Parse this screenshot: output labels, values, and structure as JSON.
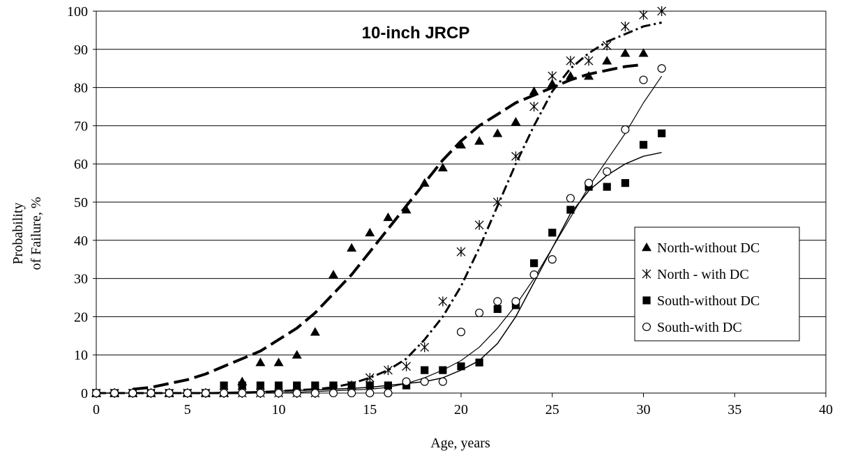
{
  "chart_data": {
    "type": "scatter",
    "title": "10-inch JRCP",
    "xlabel": "Age, years",
    "ylabel_lines": [
      "Probability",
      "of Failure, %"
    ],
    "xlim": [
      0,
      40
    ],
    "ylim": [
      0,
      100
    ],
    "xticks": [
      0,
      5,
      10,
      15,
      20,
      25,
      30,
      35,
      40
    ],
    "yticks": [
      0,
      10,
      20,
      30,
      40,
      50,
      60,
      70,
      80,
      90,
      100
    ],
    "grid": "horizontal",
    "legend_position": "right",
    "series": [
      {
        "name": "North-without DC",
        "marker": "triangle",
        "x": [
          0,
          1,
          2,
          3,
          4,
          5,
          6,
          7,
          8,
          9,
          10,
          11,
          12,
          13,
          14,
          15,
          16,
          17,
          18,
          19,
          20,
          21,
          22,
          23,
          24,
          25,
          26,
          27,
          28,
          29,
          30
        ],
        "y": [
          0,
          0,
          0,
          0,
          0,
          0,
          0,
          0,
          3,
          8,
          8,
          10,
          16,
          31,
          38,
          42,
          46,
          48,
          55,
          59,
          65,
          66,
          68,
          71,
          79,
          81,
          83,
          83,
          87,
          89,
          89
        ],
        "fit": {
          "x": [
            2,
            3,
            4,
            5,
            6,
            7,
            8,
            9,
            10,
            11,
            12,
            13,
            14,
            15,
            16,
            17,
            18,
            19,
            20,
            21,
            22,
            23,
            24,
            25,
            26,
            27,
            28,
            29,
            30
          ],
          "y": [
            1,
            1.5,
            2.5,
            3.5,
            5,
            7,
            9,
            11,
            14,
            17,
            21,
            26,
            31,
            37,
            43,
            49,
            55,
            61,
            66,
            70,
            73,
            76,
            78,
            80,
            82,
            83.5,
            84.5,
            85.5,
            86
          ]
        }
      },
      {
        "name": "North - with DC",
        "marker": "asterisk",
        "x": [
          0,
          1,
          2,
          3,
          4,
          5,
          6,
          7,
          8,
          9,
          10,
          11,
          12,
          13,
          14,
          15,
          16,
          17,
          18,
          19,
          20,
          21,
          22,
          23,
          24,
          25,
          26,
          27,
          28,
          29,
          30,
          31
        ],
        "y": [
          0,
          0,
          0,
          0,
          0,
          0,
          0,
          0,
          0,
          0,
          0,
          0,
          0,
          1,
          2,
          4,
          6,
          7,
          12,
          24,
          37,
          44,
          50,
          62,
          75,
          83,
          87,
          87,
          91,
          96,
          99,
          100
        ],
        "fit": {
          "x": [
            0,
            2,
            4,
            6,
            8,
            10,
            12,
            13,
            14,
            15,
            16,
            17,
            18,
            19,
            20,
            21,
            22,
            23,
            24,
            25,
            26,
            27,
            28,
            29,
            30,
            31
          ],
          "y": [
            0,
            0,
            0,
            0,
            0,
            0.5,
            1,
            1.5,
            2.5,
            4,
            6,
            9,
            14,
            20,
            28,
            38,
            49,
            60,
            70,
            79,
            85,
            89,
            92,
            94,
            96,
            97
          ]
        }
      },
      {
        "name": "South-without DC",
        "marker": "square",
        "x": [
          0,
          1,
          2,
          3,
          4,
          5,
          6,
          7,
          8,
          9,
          10,
          11,
          12,
          13,
          14,
          15,
          16,
          17,
          18,
          19,
          20,
          21,
          22,
          23,
          24,
          25,
          26,
          27,
          28,
          29,
          30,
          31
        ],
        "y": [
          0,
          0,
          0,
          0,
          0,
          0,
          0,
          2,
          2,
          2,
          2,
          2,
          2,
          2,
          2,
          2,
          2,
          2,
          6,
          6,
          7,
          8,
          22,
          23,
          34,
          42,
          48,
          54,
          54,
          55,
          65,
          68
        ],
        "fit": {
          "x": [
            0,
            5,
            10,
            13,
            15,
            16,
            17,
            18,
            19,
            20,
            21,
            22,
            23,
            24,
            25,
            26,
            27,
            28,
            29,
            30,
            31
          ],
          "y": [
            0,
            0,
            0.5,
            1,
            1.5,
            2,
            2.5,
            3,
            4,
            6,
            8.5,
            13,
            20,
            29,
            38,
            47,
            53,
            57,
            60,
            62,
            63
          ]
        }
      },
      {
        "name": "South-with DC",
        "marker": "circle",
        "x": [
          0,
          1,
          2,
          3,
          4,
          5,
          6,
          7,
          8,
          9,
          10,
          11,
          12,
          13,
          14,
          15,
          16,
          17,
          18,
          19,
          20,
          21,
          22,
          23,
          24,
          25,
          26,
          27,
          28,
          29,
          30,
          31
        ],
        "y": [
          0,
          0,
          0,
          0,
          0,
          0,
          0,
          0,
          0,
          0,
          0,
          0,
          0,
          0,
          0,
          0,
          0,
          3,
          3,
          3,
          16,
          21,
          24,
          24,
          31,
          35,
          51,
          55,
          58,
          69,
          82,
          85
        ],
        "fit": {
          "x": [
            0,
            5,
            10,
            15,
            16,
            17,
            18,
            19,
            20,
            21,
            22,
            23,
            24,
            25,
            26,
            27,
            28,
            29,
            30,
            31
          ],
          "y": [
            0,
            0,
            0,
            1,
            1.5,
            2.5,
            4,
            6,
            8.5,
            12,
            17,
            23,
            30,
            38,
            46,
            54,
            61,
            68,
            76,
            83
          ]
        }
      }
    ]
  }
}
